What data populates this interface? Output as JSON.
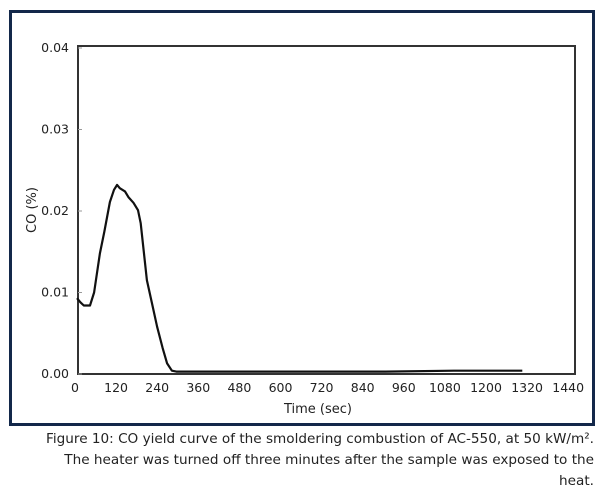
{
  "chart_data": {
    "type": "line",
    "xlabel": "Time (sec)",
    "ylabel": "CO (%)",
    "xlim": [
      0,
      1460
    ],
    "ylim": [
      0,
      0.04
    ],
    "xticks": [
      "0",
      "120",
      "240",
      "360",
      "480",
      "600",
      "720",
      "840",
      "960",
      "1080",
      "1200",
      "1320",
      "1440"
    ],
    "yticks": [
      "0.00",
      "0.01",
      "0.02",
      "0.03",
      "0.04"
    ],
    "grid": false,
    "series": [
      {
        "color": "#111111",
        "x": [
          0,
          10,
          20,
          38,
          50,
          67,
          80,
          96,
          108,
          117,
          125,
          140,
          150,
          165,
          178,
          186,
          195,
          204,
          220,
          234,
          250,
          263,
          277,
          290,
          300,
          600,
          900,
          1100,
          1300
        ],
        "y": [
          0.0093,
          0.0088,
          0.0084,
          0.0084,
          0.01,
          0.0148,
          0.0175,
          0.0211,
          0.0226,
          0.0232,
          0.0228,
          0.0224,
          0.0217,
          0.021,
          0.0201,
          0.0185,
          0.015,
          0.0115,
          0.0085,
          0.0058,
          0.0032,
          0.0013,
          0.0004,
          0.0003,
          0.0003,
          0.0003,
          0.0003,
          0.0004,
          0.0004
        ]
      }
    ]
  },
  "caption": {
    "line1": "Figure 10: CO yield curve of the smoldering combustion of AC-550, at 50 kW/m².",
    "line2": "The heater was turned off three minutes after the sample was exposed to the",
    "line3": "heat."
  }
}
